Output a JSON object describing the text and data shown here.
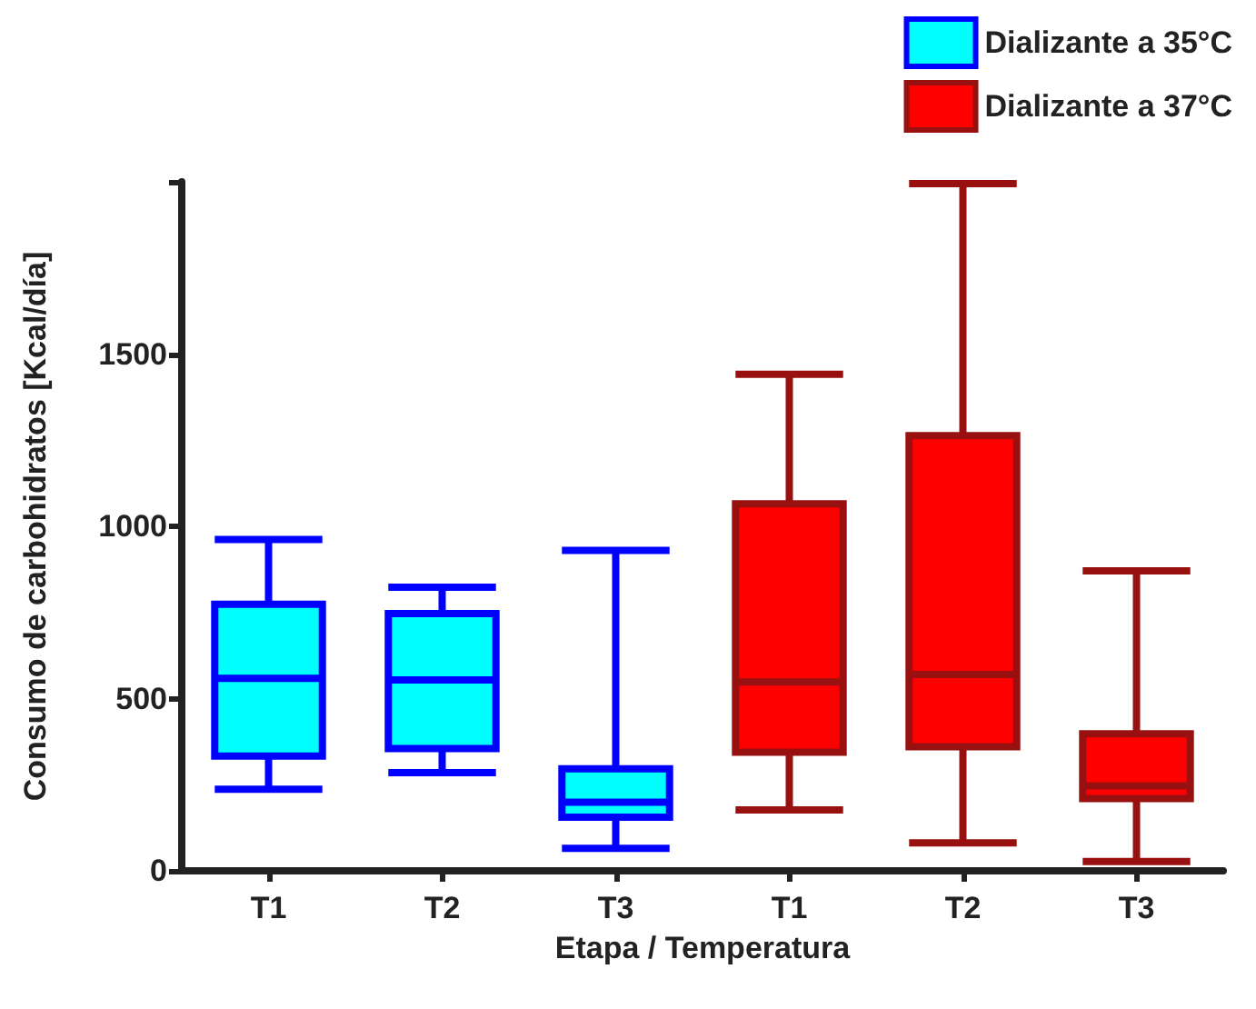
{
  "chart_data": {
    "type": "box",
    "xlabel": "Etapa / Temperatura",
    "ylabel": "Consumo de carbohidratos [Kcal/día]",
    "categories": [
      "T1",
      "T2",
      "T3",
      "T1",
      "T2",
      "T3"
    ],
    "ylim": [
      0,
      2000
    ],
    "yticks": [
      0,
      500,
      1000,
      1500,
      {
        "value": 2000,
        "label": null
      }
    ],
    "grid": false,
    "legend": "top right",
    "series": [
      {
        "name": "Dializante a 35°C",
        "color": "#00ffff",
        "boxes": [
          {
            "low": 237,
            "q1": 333,
            "median": 559,
            "q3": 774,
            "high": 962
          },
          {
            "low": 285,
            "q1": 355,
            "median": 554,
            "q3": 747,
            "high": 823
          },
          {
            "low": 65,
            "q1": 156,
            "median": 199,
            "q3": 296,
            "high": 930
          },
          null,
          null,
          null
        ]
      },
      {
        "name": "Dializante a 37°C",
        "color": "#ff0000",
        "boxes": [
          null,
          null,
          null,
          {
            "low": 177,
            "q1": 344,
            "median": 548,
            "q3": 1065,
            "high": 1441
          },
          {
            "low": 81,
            "q1": 360,
            "median": 570,
            "q3": 1263,
            "high": 1995
          },
          {
            "low": 27,
            "q1": 210,
            "median": 247,
            "q3": 398,
            "high": 871
          }
        ]
      }
    ]
  }
}
